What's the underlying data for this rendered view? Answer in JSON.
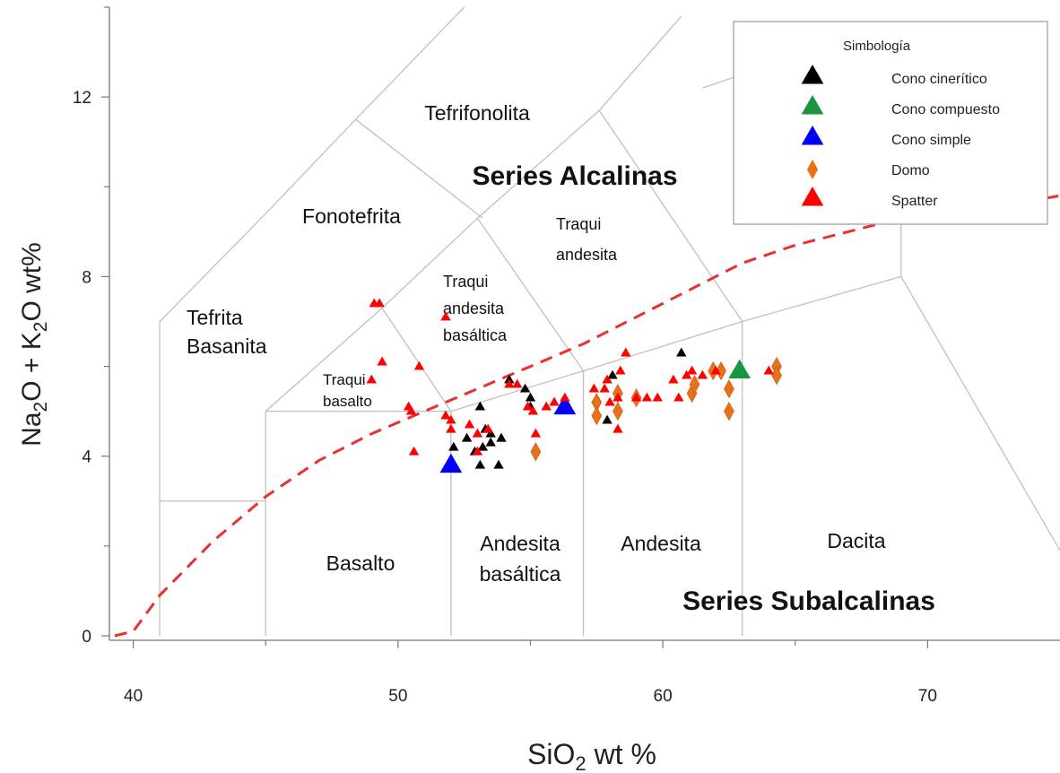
{
  "chart_data": {
    "type": "scatter",
    "title": "",
    "xlabel": {
      "main": "SiO",
      "sub": "2",
      "tail": " wt %"
    },
    "ylabel": {
      "p1": "Na",
      "s1": "2",
      "p2": "O + K",
      "s2": "2",
      "p3": "O wt%"
    },
    "xlim": [
      39.1,
      75
    ],
    "ylim": [
      -0.1,
      14
    ],
    "x_ticks": [
      40,
      50,
      60,
      70
    ],
    "y_ticks": [
      0,
      4,
      8,
      12
    ],
    "tick_labels": {
      "x": [
        "40",
        "50",
        "60",
        "70"
      ],
      "y": [
        "0",
        "4",
        "8",
        "12"
      ]
    },
    "grid": false,
    "field_labels": {
      "tefrifonolita": "Tefrifonolita",
      "fonotefrita": "Fonotefrita",
      "tefrita": "Tefrita",
      "basanita": "Basanita",
      "traqui_andesita_1": "Traqui",
      "traqui_andesita_2": "andesita",
      "tab_1": "Traqui",
      "tab_2": "andesita",
      "tab_3": "basáltica",
      "traqui_basalto_1": "Traqui",
      "traqui_basalto_2": "basalto",
      "basalto": "Basalto",
      "andesita_basaltica_1": "Andesita",
      "andesita_basaltica_2": "basáltica",
      "andesita": "Andesita",
      "dacita": "Dacita"
    },
    "series_labels": {
      "alcalinas": "Series Alcalinas",
      "subalcalinas": "Series Subalcalinas"
    },
    "legend": {
      "title": "Simbología",
      "position": "top-right",
      "entries": [
        {
          "label": "Cono cinerítico",
          "color": "#000000",
          "marker": "triangle"
        },
        {
          "label": "Cono compuesto",
          "color": "#1a9641",
          "marker": "triangle"
        },
        {
          "label": "Cono simple",
          "color": "#0000ff",
          "marker": "triangle"
        },
        {
          "label": "Domo",
          "color": "#e8701a",
          "marker": "diamond"
        },
        {
          "label": "Spatter",
          "color": "#ff0000",
          "marker": "triangle"
        }
      ]
    },
    "series": [
      {
        "name": "Cono cinerítico",
        "color": "#000000",
        "marker": "triangle",
        "points": [
          [
            52.1,
            4.2
          ],
          [
            52.6,
            4.4
          ],
          [
            53.1,
            5.1
          ],
          [
            53.3,
            4.6
          ],
          [
            53.5,
            4.3
          ],
          [
            53.9,
            4.4
          ],
          [
            52.9,
            4.1
          ],
          [
            53.2,
            4.2
          ],
          [
            53.1,
            3.8
          ],
          [
            53.8,
            3.8
          ],
          [
            54.8,
            5.5
          ],
          [
            55.0,
            5.3
          ],
          [
            55.0,
            5.1
          ],
          [
            54.2,
            5.7
          ],
          [
            57.9,
            4.8
          ],
          [
            58.1,
            5.8
          ],
          [
            60.7,
            6.3
          ],
          [
            53.5,
            4.5
          ]
        ]
      },
      {
        "name": "Cono compuesto",
        "color": "#1a9641",
        "marker": "triangle",
        "points": [
          [
            62.9,
            5.9
          ]
        ]
      },
      {
        "name": "Cono simple",
        "color": "#0000ff",
        "marker": "triangle",
        "points": [
          [
            52.0,
            3.8
          ],
          [
            56.3,
            5.1
          ]
        ]
      },
      {
        "name": "Domo",
        "color": "#e8701a",
        "marker": "diamond",
        "points": [
          [
            55.2,
            4.1
          ],
          [
            57.5,
            5.2
          ],
          [
            57.5,
            4.9
          ],
          [
            58.3,
            5.0
          ],
          [
            58.3,
            5.4
          ],
          [
            59.0,
            5.3
          ],
          [
            61.1,
            5.4
          ],
          [
            61.2,
            5.6
          ],
          [
            61.9,
            5.9
          ],
          [
            62.2,
            5.9
          ],
          [
            62.5,
            5.5
          ],
          [
            62.5,
            5.0
          ],
          [
            64.3,
            6.0
          ],
          [
            64.3,
            5.8
          ]
        ]
      },
      {
        "name": "Spatter",
        "color": "#ff0000",
        "marker": "triangle",
        "points": [
          [
            49.1,
            7.4
          ],
          [
            49.3,
            7.4
          ],
          [
            49.4,
            6.1
          ],
          [
            49.0,
            5.7
          ],
          [
            50.4,
            5.1
          ],
          [
            50.5,
            5.0
          ],
          [
            50.6,
            4.1
          ],
          [
            50.8,
            6.0
          ],
          [
            51.8,
            7.1
          ],
          [
            51.8,
            4.9
          ],
          [
            52.0,
            4.8
          ],
          [
            52.0,
            4.6
          ],
          [
            52.7,
            4.7
          ],
          [
            53.0,
            4.5
          ],
          [
            53.4,
            4.6
          ],
          [
            53.0,
            4.1
          ],
          [
            54.2,
            5.6
          ],
          [
            54.5,
            5.6
          ],
          [
            54.9,
            5.1
          ],
          [
            55.1,
            5.0
          ],
          [
            55.2,
            4.5
          ],
          [
            55.6,
            5.1
          ],
          [
            55.9,
            5.2
          ],
          [
            56.3,
            5.3
          ],
          [
            57.4,
            5.5
          ],
          [
            57.8,
            5.5
          ],
          [
            57.9,
            5.7
          ],
          [
            58.0,
            5.2
          ],
          [
            58.4,
            5.9
          ],
          [
            58.6,
            6.3
          ],
          [
            58.3,
            5.3
          ],
          [
            59.0,
            5.3
          ],
          [
            59.4,
            5.3
          ],
          [
            59.8,
            5.3
          ],
          [
            60.4,
            5.7
          ],
          [
            60.6,
            5.3
          ],
          [
            60.9,
            5.8
          ],
          [
            61.1,
            5.9
          ],
          [
            61.5,
            5.8
          ],
          [
            62.0,
            5.9
          ],
          [
            64.0,
            5.9
          ],
          [
            58.3,
            4.6
          ]
        ]
      }
    ],
    "reference_lines": {
      "alkaline_subalkaline_divider": {
        "style": "dashed",
        "color": "#e83030",
        "points": [
          [
            39.3,
            0
          ],
          [
            40.0,
            0.1
          ],
          [
            41.0,
            0.9
          ],
          [
            43.0,
            2.1
          ],
          [
            45.0,
            3.1
          ],
          [
            47.0,
            3.9
          ],
          [
            49.0,
            4.5
          ],
          [
            51.0,
            5.0
          ],
          [
            53.0,
            5.5
          ],
          [
            55.0,
            6.0
          ],
          [
            57.0,
            6.5
          ],
          [
            59.0,
            7.1
          ],
          [
            61.0,
            7.7
          ],
          [
            63.0,
            8.3
          ],
          [
            65.0,
            8.7
          ],
          [
            67.0,
            9.0
          ],
          [
            69.0,
            9.3
          ],
          [
            71.0,
            9.45
          ],
          [
            73.0,
            9.6
          ],
          [
            75.0,
            9.8
          ]
        ]
      }
    },
    "field_boundaries": [
      [
        [
          41,
          0
        ],
        [
          41,
          3
        ]
      ],
      [
        [
          41,
          3
        ],
        [
          45,
          3
        ]
      ],
      [
        [
          45,
          0
        ],
        [
          45,
          5
        ]
      ],
      [
        [
          41,
          3
        ],
        [
          41,
          7
        ]
      ],
      [
        [
          41,
          7
        ],
        [
          45,
          9.4
        ]
      ],
      [
        [
          45,
          9.4
        ],
        [
          48.4,
          11.5
        ]
      ],
      [
        [
          48.4,
          11.5
        ],
        [
          52.5,
          14
        ]
      ],
      [
        [
          45,
          5
        ],
        [
          49.4,
          7.3
        ]
      ],
      [
        [
          49.4,
          7.3
        ],
        [
          53,
          9.3
        ]
      ],
      [
        [
          53,
          9.3
        ],
        [
          57.6,
          11.7
        ]
      ],
      [
        [
          57.6,
          11.7
        ],
        [
          60.7,
          13.8
        ]
      ],
      [
        [
          45,
          5
        ],
        [
          52,
          5
        ]
      ],
      [
        [
          52,
          0
        ],
        [
          52,
          5
        ]
      ],
      [
        [
          52,
          5
        ],
        [
          57,
          5.9
        ]
      ],
      [
        [
          57,
          0
        ],
        [
          57,
          5.9
        ]
      ],
      [
        [
          57,
          5.9
        ],
        [
          63,
          7
        ]
      ],
      [
        [
          63,
          0
        ],
        [
          63,
          7
        ]
      ],
      [
        [
          63,
          7
        ],
        [
          69,
          8
        ]
      ],
      [
        [
          69,
          8
        ],
        [
          69,
          13
        ]
      ],
      [
        [
          69,
          8
        ],
        [
          75,
          1.9
        ]
      ],
      [
        [
          49.4,
          7.3
        ],
        [
          52,
          5
        ]
      ],
      [
        [
          53,
          9.3
        ],
        [
          57,
          5.9
        ]
      ],
      [
        [
          57.6,
          11.7
        ],
        [
          63,
          7
        ]
      ],
      [
        [
          48.4,
          11.5
        ],
        [
          53.2,
          9.3
        ]
      ],
      [
        [
          61.5,
          12.2
        ],
        [
          66,
          13.1
        ]
      ]
    ]
  }
}
